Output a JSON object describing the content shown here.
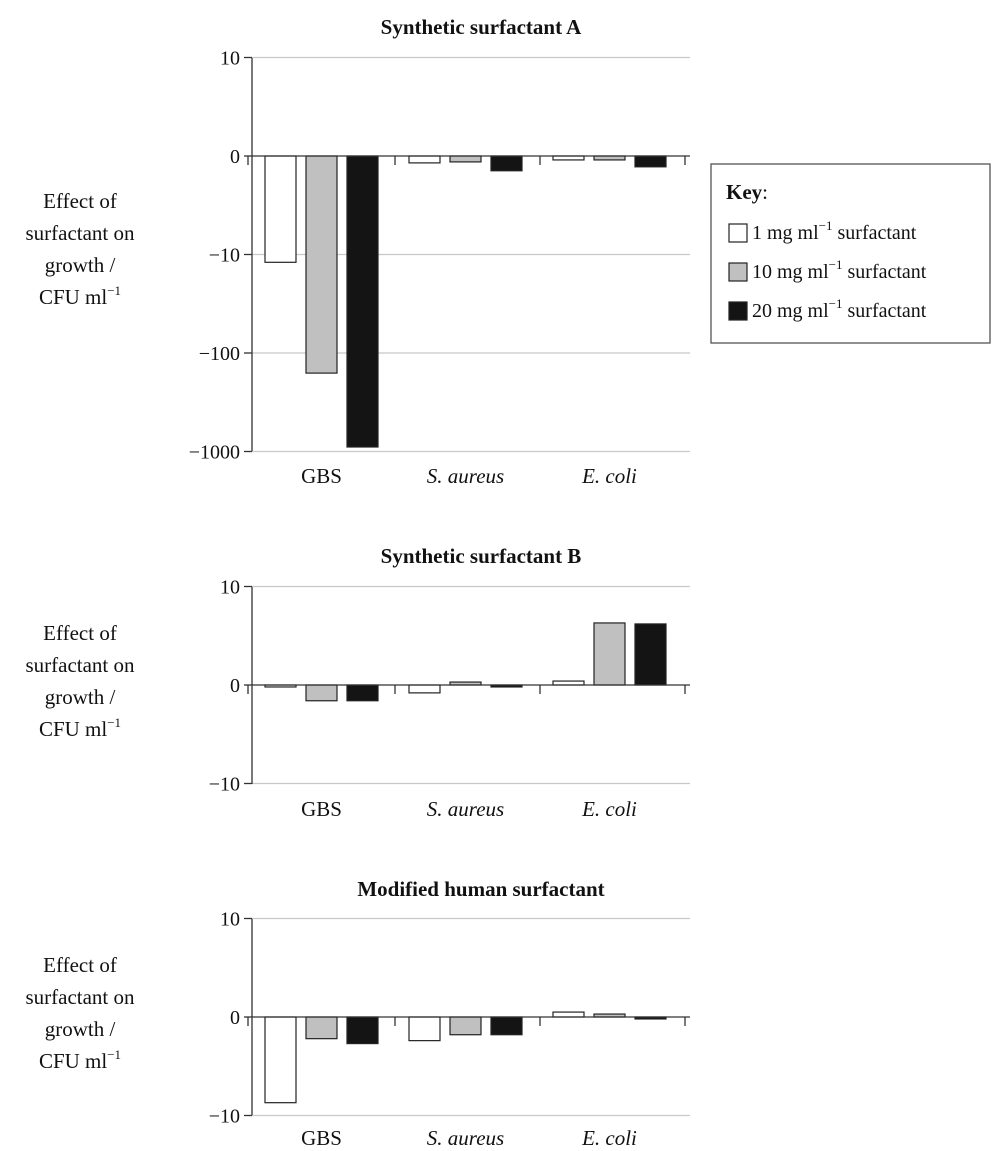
{
  "chart_data": [
    {
      "type": "bar",
      "title": "Synthetic surfactant A",
      "ylabel_lines": [
        "Effect of",
        "surfactant on",
        "growth /",
        "CFU ml"
      ],
      "ylabel_superscript": "−1",
      "ytick_labels": [
        "10",
        "0",
        "−10",
        "−100",
        "−1000"
      ],
      "ytick_values": [
        10,
        0,
        -10,
        -100,
        -1000
      ],
      "yscale": "symlog",
      "categories": [
        "GBS",
        "S. aureus",
        "E. coli"
      ],
      "category_italic": [
        false,
        true,
        true
      ],
      "series": [
        {
          "name": "1 mg ml−1 surfactant",
          "values": [
            -12,
            -0.7,
            -0.4
          ]
        },
        {
          "name": "10 mg ml−1 surfactant",
          "values": [
            -160,
            -0.6,
            -0.4
          ]
        },
        {
          "name": "20 mg ml−1 surfactant",
          "values": [
            -900,
            -1.5,
            -1.1
          ]
        }
      ],
      "grid": true
    },
    {
      "type": "bar",
      "title": "Synthetic surfactant B",
      "ylabel_lines": [
        "Effect of",
        "surfactant on",
        "growth /",
        "CFU ml"
      ],
      "ylabel_superscript": "−1",
      "ytick_labels": [
        "10",
        "0",
        "−10"
      ],
      "ytick_values": [
        10,
        0,
        -10
      ],
      "yscale": "linear",
      "categories": [
        "GBS",
        "S. aureus",
        "E. coli"
      ],
      "category_italic": [
        false,
        true,
        true
      ],
      "series": [
        {
          "name": "1 mg ml−1 surfactant",
          "values": [
            -0.2,
            -0.8,
            0.4
          ]
        },
        {
          "name": "10 mg ml−1 surfactant",
          "values": [
            -1.6,
            0.3,
            6.3
          ]
        },
        {
          "name": "20 mg ml−1 surfactant",
          "values": [
            -1.6,
            -0.2,
            6.2
          ]
        }
      ],
      "grid": true
    },
    {
      "type": "bar",
      "title": "Modified human surfactant",
      "ylabel_lines": [
        "Effect of",
        "surfactant on",
        "growth /",
        "CFU ml"
      ],
      "ylabel_superscript": "−1",
      "ytick_labels": [
        "10",
        "0",
        "−10"
      ],
      "ytick_values": [
        10,
        0,
        -10
      ],
      "yscale": "linear",
      "categories": [
        "GBS",
        "S. aureus",
        "E. coli"
      ],
      "category_italic": [
        false,
        true,
        true
      ],
      "series": [
        {
          "name": "1 mg ml−1 surfactant",
          "values": [
            -8.7,
            -2.4,
            0.5
          ]
        },
        {
          "name": "10 mg ml−1 surfactant",
          "values": [
            -2.2,
            -1.8,
            0.3
          ]
        },
        {
          "name": "20 mg ml−1 surfactant",
          "values": [
            -2.7,
            -1.8,
            -0.2
          ]
        }
      ],
      "grid": true
    }
  ],
  "legend": {
    "title": "Key",
    "title_suffix": ":",
    "items": [
      {
        "prefix": "1 mg ml",
        "sup": "−1",
        "suffix": " surfactant",
        "color": "#ffffff"
      },
      {
        "prefix": "10 mg ml",
        "sup": "−1",
        "suffix": " surfactant",
        "color": "#c0c0c0"
      },
      {
        "prefix": "20 mg ml",
        "sup": "−1",
        "suffix": " surfactant",
        "color": "#141414"
      }
    ]
  },
  "colors": {
    "series": [
      "#ffffff",
      "#c0c0c0",
      "#141414"
    ],
    "grid": "#c8c8c8",
    "axis": "#333333"
  }
}
